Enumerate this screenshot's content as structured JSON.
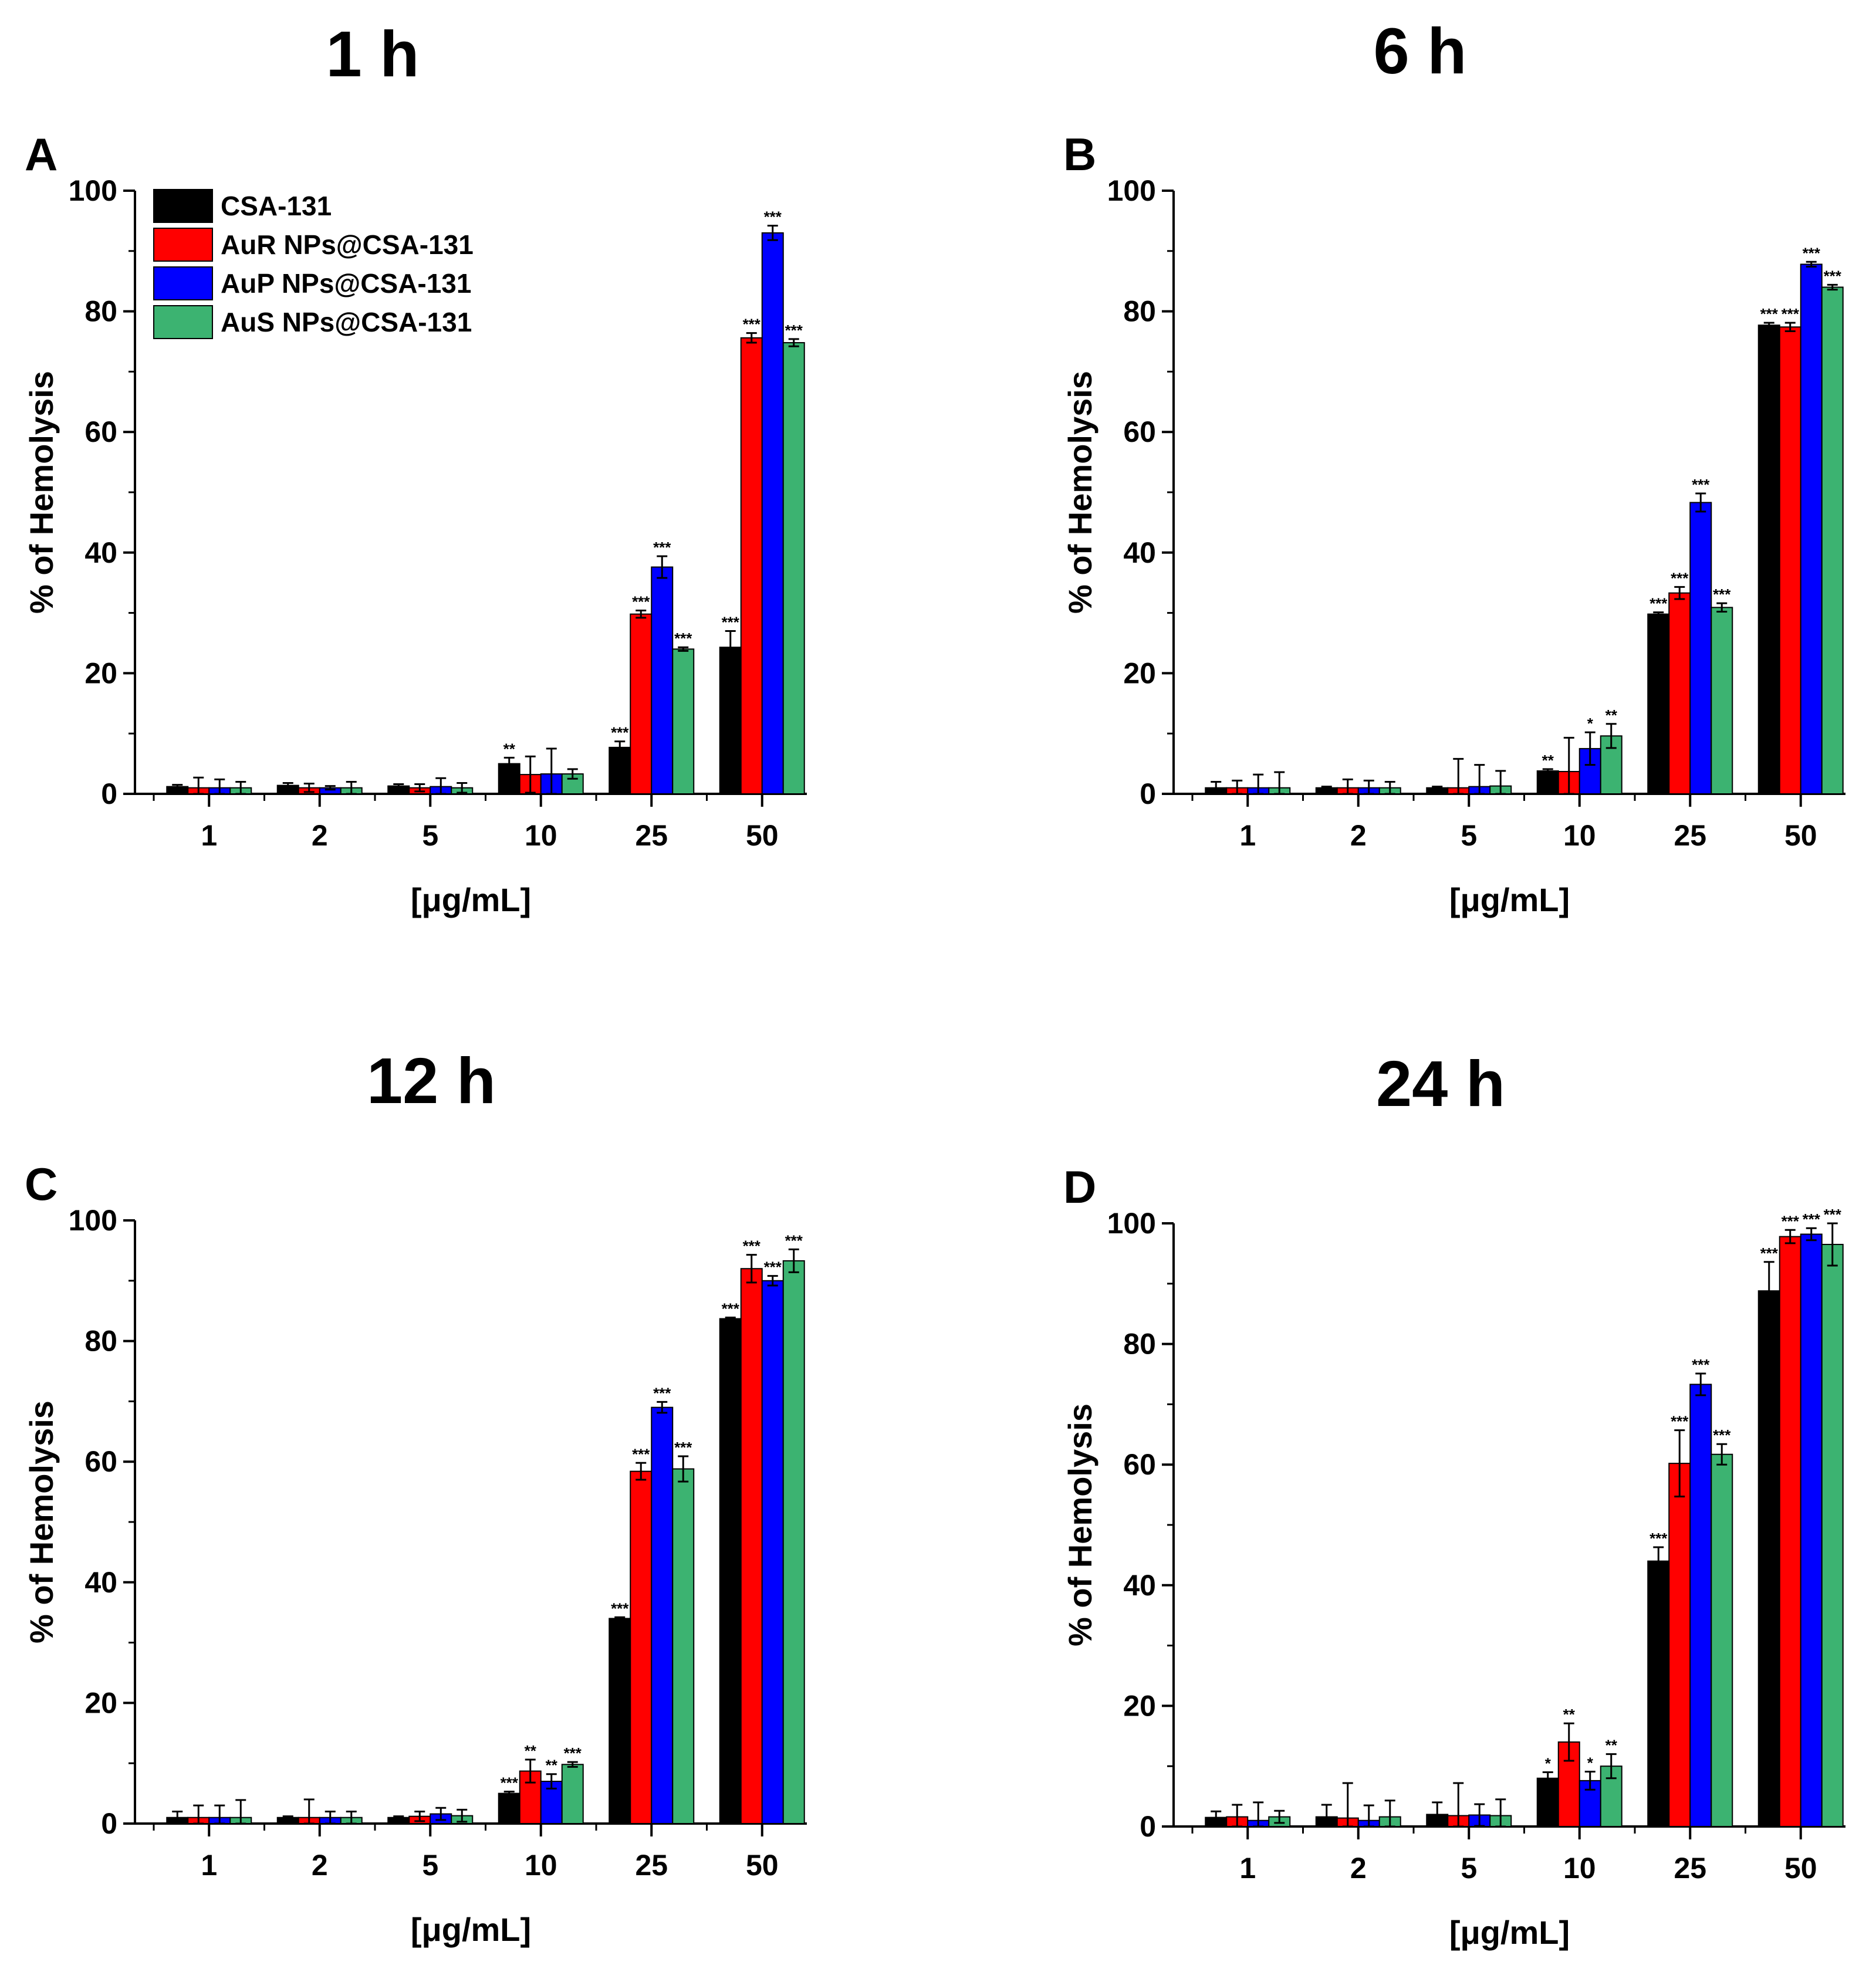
{
  "chart_data": {
    "type": "bar",
    "xlabel": "[μg/mL]",
    "ylabel": "% of Hemolysis",
    "ylim": [
      0,
      100
    ],
    "yticks": [
      "0",
      "20",
      "40",
      "60",
      "80",
      "100"
    ],
    "categories": [
      "1",
      "2",
      "5",
      "10",
      "25",
      "50"
    ],
    "legend": {
      "position": "top-left",
      "entries": [
        "CSA-131",
        "AuR NPs@CSA-131",
        "AuP NPs@CSA-131",
        "AuS NPs@CSA-131"
      ]
    },
    "colors": [
      "#000000",
      "#ff0000",
      "#0000ff",
      "#3cb371"
    ],
    "panels": [
      {
        "letter": "A",
        "title": "1 h",
        "series": [
          {
            "name": "CSA-131",
            "values": [
              1.2,
              1.4,
              1.3,
              5.0,
              7.7,
              24.3
            ],
            "errors": [
              0.3,
              0.4,
              0.3,
              1.0,
              1.0,
              2.7
            ],
            "sig": [
              "",
              "",
              "",
              "**",
              "***",
              "***"
            ]
          },
          {
            "name": "AuR NPs@CSA-131",
            "values": [
              1.0,
              1.0,
              1.0,
              3.2,
              29.8,
              75.6
            ],
            "errors": [
              1.7,
              0.7,
              0.6,
              3.0,
              0.6,
              0.8
            ],
            "sig": [
              "",
              "",
              "",
              "",
              "***",
              "***"
            ]
          },
          {
            "name": "AuP NPs@CSA-131",
            "values": [
              1.0,
              1.0,
              1.2,
              3.3,
              37.6,
              93.0
            ],
            "errors": [
              1.4,
              0.3,
              1.4,
              4.2,
              1.8,
              1.2
            ],
            "sig": [
              "",
              "",
              "",
              "",
              "***",
              "***"
            ]
          },
          {
            "name": "AuS NPs@CSA-131",
            "values": [
              1.0,
              1.0,
              1.0,
              3.3,
              24.0,
              74.8
            ],
            "errors": [
              1.0,
              1.0,
              0.8,
              0.8,
              0.3,
              0.6
            ],
            "sig": [
              "",
              "",
              "",
              "",
              "***",
              "***"
            ]
          }
        ]
      },
      {
        "letter": "B",
        "title": "6 h",
        "series": [
          {
            "name": "CSA-131",
            "values": [
              1.0,
              1.0,
              1.0,
              3.8,
              29.8,
              77.7
            ],
            "errors": [
              1.0,
              0.2,
              0.2,
              0.3,
              0.3,
              0.4
            ],
            "sig": [
              "",
              "",
              "",
              "**",
              "***",
              "***"
            ]
          },
          {
            "name": "AuR NPs@CSA-131",
            "values": [
              1.0,
              1.0,
              1.0,
              3.7,
              33.3,
              77.4
            ],
            "errors": [
              1.2,
              1.4,
              4.8,
              5.6,
              1.0,
              0.7
            ],
            "sig": [
              "",
              "",
              "",
              "",
              "***",
              "***"
            ]
          },
          {
            "name": "AuP NPs@CSA-131",
            "values": [
              1.0,
              1.0,
              1.2,
              7.5,
              48.3,
              87.8
            ],
            "errors": [
              2.2,
              1.2,
              3.6,
              2.7,
              1.5,
              0.4
            ],
            "sig": [
              "",
              "",
              "",
              "*",
              "***",
              "***"
            ]
          },
          {
            "name": "AuS NPs@CSA-131",
            "values": [
              1.0,
              1.0,
              1.3,
              9.6,
              30.9,
              84.0
            ],
            "errors": [
              2.6,
              1.0,
              2.5,
              2.0,
              0.7,
              0.4
            ],
            "sig": [
              "",
              "",
              "",
              "**",
              "***",
              "***"
            ]
          }
        ]
      },
      {
        "letter": "C",
        "title": "12 h",
        "series": [
          {
            "name": "CSA-131",
            "values": [
              1.0,
              1.0,
              1.0,
              5.0,
              34.0,
              83.7
            ],
            "errors": [
              1.0,
              0.2,
              0.2,
              0.3,
              0.2,
              0.2
            ],
            "sig": [
              "",
              "",
              "",
              "***",
              "***",
              "***"
            ]
          },
          {
            "name": "AuR NPs@CSA-131",
            "values": [
              1.0,
              1.0,
              1.2,
              8.7,
              58.4,
              92.0
            ],
            "errors": [
              2.0,
              3.0,
              0.8,
              1.9,
              1.4,
              2.3
            ],
            "sig": [
              "",
              "",
              "",
              "**",
              "***",
              "***"
            ]
          },
          {
            "name": "AuP NPs@CSA-131",
            "values": [
              1.0,
              1.0,
              1.6,
              7.0,
              69.0,
              90.0
            ],
            "errors": [
              2.0,
              1.0,
              1.0,
              1.2,
              0.9,
              0.8
            ],
            "sig": [
              "",
              "",
              "",
              "**",
              "***",
              "***"
            ]
          },
          {
            "name": "AuS NPs@CSA-131",
            "values": [
              1.0,
              1.0,
              1.3,
              9.8,
              58.8,
              93.3
            ],
            "errors": [
              2.9,
              1.0,
              1.0,
              0.4,
              2.1,
              1.9
            ],
            "sig": [
              "",
              "",
              "",
              "***",
              "***",
              "***"
            ]
          }
        ]
      },
      {
        "letter": "D",
        "title": "24 h",
        "series": [
          {
            "name": "CSA-131",
            "values": [
              1.5,
              1.6,
              2.0,
              8.0,
              44.0,
              88.8
            ],
            "errors": [
              1.0,
              2.0,
              2.0,
              1.0,
              2.3,
              4.8
            ],
            "sig": [
              "",
              "",
              "",
              "*",
              "***",
              "***"
            ]
          },
          {
            "name": "AuR NPs@CSA-131",
            "values": [
              1.6,
              1.4,
              1.8,
              14.0,
              60.2,
              97.8
            ],
            "errors": [
              2.0,
              5.8,
              5.4,
              3.1,
              5.5,
              1.1
            ],
            "sig": [
              "",
              "",
              "",
              "**",
              "***",
              "***"
            ]
          },
          {
            "name": "AuP NPs@CSA-131",
            "values": [
              1.0,
              1.0,
              1.9,
              7.6,
              73.3,
              98.2
            ],
            "errors": [
              3.0,
              2.5,
              1.8,
              1.5,
              1.8,
              1.0
            ],
            "sig": [
              "",
              "",
              "",
              "*",
              "***",
              "***"
            ]
          },
          {
            "name": "AuS NPs@CSA-131",
            "values": [
              1.6,
              1.6,
              1.8,
              10.0,
              61.7,
              96.5
            ],
            "errors": [
              1.0,
              2.7,
              2.7,
              2.0,
              1.7,
              3.5
            ],
            "sig": [
              "",
              "",
              "",
              "**",
              "***",
              "***"
            ]
          }
        ]
      }
    ]
  }
}
